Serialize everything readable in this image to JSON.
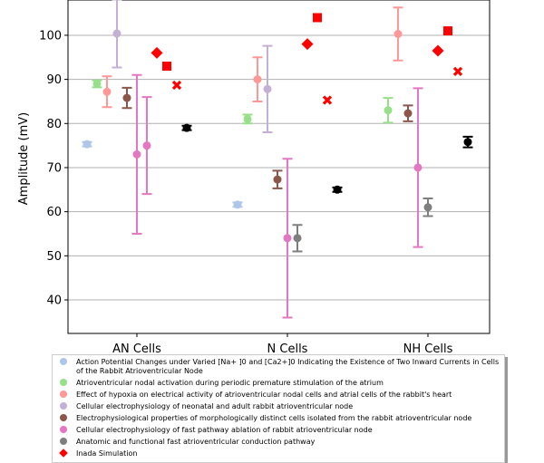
{
  "chart_data": {
    "type": "errorbar",
    "ylabel": "Amplitude (mV)",
    "categories": [
      "AN Cells",
      "N Cells",
      "NH Cells"
    ],
    "ylim": [
      32.4,
      108
    ],
    "yticks": [
      40,
      50,
      60,
      70,
      80,
      90,
      100
    ],
    "grid": true,
    "series": [
      {
        "name": "Action Potential Changes under Varied [Na+ ]0 and [Ca2+]0 Indicating the Existence of Two Inward Currents in Cells of the Rabbit Atrioventricular Node",
        "color": "#aec7e8",
        "marker": "circle",
        "values": [
          75.3,
          61.6,
          null
        ],
        "errors": [
          0.5,
          0.5,
          null
        ]
      },
      {
        "name": "Atrioventricular nodal activation during periodic premature stimulation of the atrium",
        "color": "#98df8a",
        "marker": "circle",
        "values": [
          89,
          81,
          83
        ],
        "errors": [
          0.8,
          1,
          2.8
        ]
      },
      {
        "name": "Effect of hypoxia on electrical activity of atrioventricular nodal cells and atrial cells of the rabbit's heart",
        "color": "#ff9896",
        "marker": "circle",
        "values": [
          87.2,
          90,
          100.3
        ],
        "errors": [
          3.5,
          5,
          6
        ]
      },
      {
        "name": "Cellular electrophysiology of neonatal and adult rabbit atrioventricular node",
        "color": "#c5b0d5",
        "marker": "circle",
        "values": [
          100.4,
          87.8,
          null
        ],
        "errors": [
          7.7,
          9.8,
          null
        ]
      },
      {
        "name": "Electrophysiological properties of morphologically distinct cells isolated from the rabbit atrioventricular node",
        "color": "#8c564b",
        "marker": "circle",
        "values": [
          85.8,
          67.3,
          82.3
        ],
        "errors": [
          2.3,
          2,
          1.8
        ]
      },
      {
        "name": "Cellular electrophysiology of fast pathway ablation of rabbit atrioventricular node",
        "color": "#e377c2",
        "marker": "circle",
        "values": [
          73,
          54,
          70
        ],
        "errors": [
          18,
          18,
          18
        ]
      },
      {
        "name": "Anatomic and functional fast atrioventricular conduction pathway",
        "color": "#7f7f7f",
        "point_colors": [
          "#e377c2",
          "#7f7f7f",
          "#7f7f7f"
        ],
        "marker": "circle",
        "values": [
          75,
          54,
          61
        ],
        "errors": [
          11,
          3,
          2
        ]
      },
      {
        "name": "Inada Simulation",
        "color": "#ff0000",
        "marker": "diamond",
        "values": [
          96,
          98,
          96.5
        ]
      },
      {
        "color": "#ff0000",
        "marker": "square",
        "values": [
          93,
          104,
          101
        ]
      },
      {
        "color": "#ff0000",
        "marker": "x",
        "values": [
          88.7,
          85.3,
          91.8
        ]
      },
      {
        "color": "#000000",
        "marker": "circle",
        "values": [
          79,
          65,
          75.8
        ],
        "errors": [
          0.5,
          0.5,
          1.2
        ]
      }
    ]
  }
}
